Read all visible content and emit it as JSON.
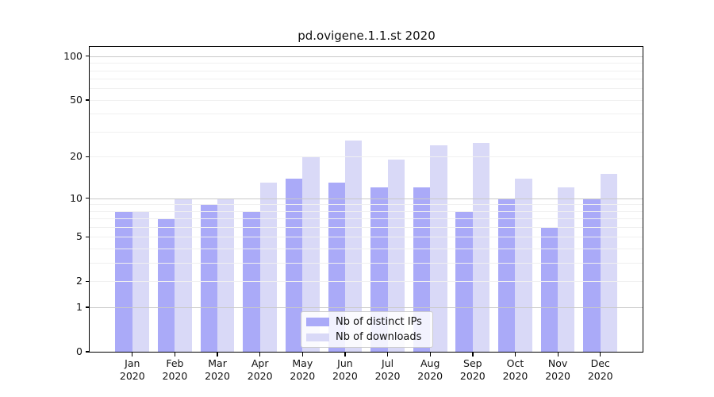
{
  "title": "pd.ovigene.1.1.st 2020",
  "colors": {
    "ips_bar": "#aaaaf8",
    "downloads_bar": "#d9d9f7",
    "major_gridline": "#c9c9c9",
    "minor_gridline": "#f0f0f0",
    "axis_line": "#000000",
    "text": "#111111",
    "legend_border": "#cccccc"
  },
  "chart_data": {
    "type": "bar",
    "title": "pd.ovigene.1.1.st 2020",
    "yscale": "log1p",
    "grid": "on",
    "categories": [
      "Jan",
      "Feb",
      "Mar",
      "Apr",
      "May",
      "Jun",
      "Jul",
      "Aug",
      "Sep",
      "Oct",
      "Nov",
      "Dec"
    ],
    "year_label": "2020",
    "series": [
      {
        "name": "Nb of distinct IPs",
        "values": [
          8,
          7,
          9,
          8,
          14,
          13,
          12,
          12,
          8,
          10,
          6,
          10
        ]
      },
      {
        "name": "Nb of downloads",
        "values": [
          8,
          10,
          10,
          13,
          20,
          26,
          19,
          24,
          25,
          14,
          12,
          15
        ]
      }
    ],
    "y_ticks": [
      0,
      1,
      2,
      5,
      10,
      20,
      50,
      100
    ],
    "y_major_gridlines": [
      1,
      10,
      100
    ],
    "y_minor_gridlines": [
      2,
      3,
      4,
      5,
      6,
      7,
      8,
      9,
      20,
      30,
      40,
      50,
      60,
      70,
      80,
      90
    ],
    "ylim": [
      0,
      116
    ],
    "legend_position": "lower center"
  },
  "legend": {
    "entries": [
      {
        "label": "Nb of distinct IPs"
      },
      {
        "label": "Nb of downloads"
      }
    ]
  }
}
